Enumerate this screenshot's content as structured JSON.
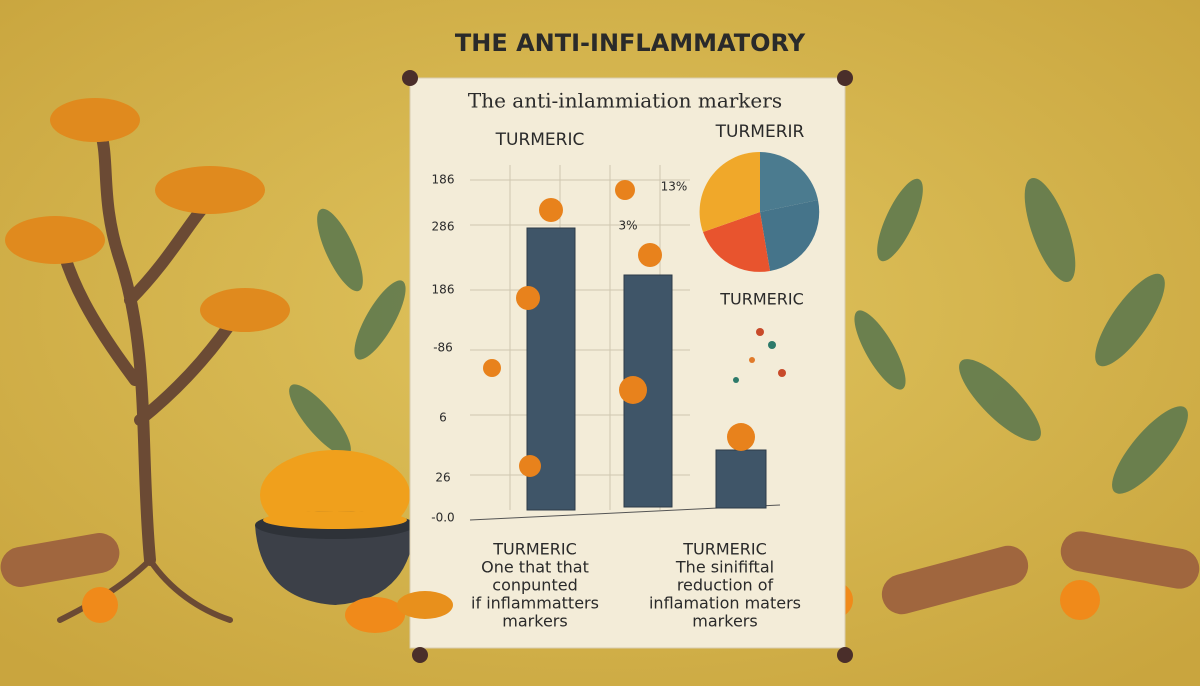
{
  "title": "THE ANTI-INFLAMMATORY",
  "poster": {
    "heading": "The anti-inlammiation markers",
    "bar_chart": {
      "label": "TURMERIC",
      "axis_labels": [
        "186",
        "286",
        "186",
        "-86",
        "6",
        "26",
        "-0.0"
      ],
      "annotation": "3%"
    },
    "pie_chart": {
      "label": "TURMERIR",
      "annotation": "13%",
      "caption": "TURMERIC"
    },
    "captions": [
      {
        "title": "TURMERIC",
        "lines": [
          "One that that",
          "conpunted",
          "if inflammatters",
          "markers"
        ]
      },
      {
        "title": "TURMERIC",
        "lines": [
          "The sinififtal",
          "reduction of",
          "inflamation maters",
          "markers"
        ]
      }
    ]
  }
}
